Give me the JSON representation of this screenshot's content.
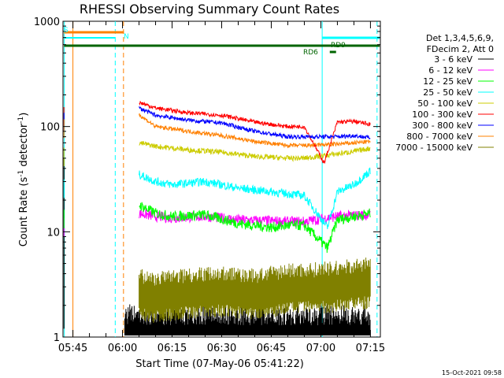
{
  "chart_data": {
    "type": "line",
    "title": "RHESSI Observing Summary Count Rates",
    "xlabel": "Start Time (07-May-06 05:41:22)",
    "ylabel_main": "Count Rate (s",
    "ylabel_sup1": "-1",
    "ylabel_mid": " detector",
    "ylabel_sup2": "-1",
    "ylabel_end": ")",
    "yscale": "log",
    "ylim": [
      1,
      1000
    ],
    "xlim_minutes": [
      342,
      438
    ],
    "y_ticks": [
      {
        "value": 1,
        "label": "1"
      },
      {
        "value": 10,
        "label": "10"
      },
      {
        "value": 100,
        "label": "100"
      },
      {
        "value": 1000,
        "label": "1000"
      }
    ],
    "x_ticks": [
      {
        "value": 345,
        "label": "05:45"
      },
      {
        "value": 360,
        "label": "06:00"
      },
      {
        "value": 375,
        "label": "06:15"
      },
      {
        "value": 390,
        "label": "06:30"
      },
      {
        "value": 405,
        "label": "06:45"
      },
      {
        "value": 420,
        "label": "07:00"
      },
      {
        "value": 435,
        "label": "07:15"
      }
    ],
    "legend_header": [
      "Det 1,3,4,5,6,9,",
      "FDecim 2, Att 0"
    ],
    "series": [
      {
        "name": "3 - 6 keV",
        "color": "#000000",
        "values": [
          [
            360.7,
            1.5
          ],
          [
            370,
            1.5
          ],
          [
            390,
            1.5
          ],
          [
            410,
            1.5
          ],
          [
            425,
            1.5
          ],
          [
            435,
            1.5
          ]
        ]
      },
      {
        "name": "6 - 12 keV",
        "color": "#ff00ff",
        "values": [
          [
            365,
            15
          ],
          [
            370,
            14
          ],
          [
            375,
            13.5
          ],
          [
            385,
            14
          ],
          [
            395,
            13
          ],
          [
            410,
            12.5
          ],
          [
            415,
            12.5
          ],
          [
            425,
            14
          ],
          [
            435,
            14.5
          ]
        ]
      },
      {
        "name": "12 - 25 keV",
        "color": "#00ff00",
        "values": [
          [
            365,
            18
          ],
          [
            370,
            15
          ],
          [
            375,
            14
          ],
          [
            385,
            14.5
          ],
          [
            395,
            12
          ],
          [
            405,
            11
          ],
          [
            410,
            11.5
          ],
          [
            415,
            11.5
          ],
          [
            422,
            7
          ],
          [
            425,
            13
          ],
          [
            435,
            15
          ]
        ]
      },
      {
        "name": "25 - 50 keV",
        "color": "#00ffff",
        "values": [
          [
            365,
            35
          ],
          [
            370,
            30
          ],
          [
            375,
            28
          ],
          [
            385,
            30
          ],
          [
            395,
            26
          ],
          [
            405,
            24
          ],
          [
            410,
            23
          ],
          [
            415,
            22
          ],
          [
            422,
            11
          ],
          [
            425,
            24
          ],
          [
            430,
            28
          ],
          [
            435,
            38
          ]
        ]
      },
      {
        "name": "50 - 100 keV",
        "color": "#cccc00",
        "values": [
          [
            365,
            70
          ],
          [
            370,
            65
          ],
          [
            380,
            60
          ],
          [
            390,
            57
          ],
          [
            400,
            52
          ],
          [
            410,
            50
          ],
          [
            415,
            50
          ],
          [
            425,
            55
          ],
          [
            430,
            58
          ],
          [
            435,
            62
          ]
        ]
      },
      {
        "name": "100 - 300 keV",
        "color": "#ff0000",
        "values": [
          [
            365,
            170
          ],
          [
            370,
            150
          ],
          [
            380,
            135
          ],
          [
            390,
            128
          ],
          [
            400,
            110
          ],
          [
            410,
            100
          ],
          [
            415,
            100
          ],
          [
            421,
            45
          ],
          [
            425,
            110
          ],
          [
            430,
            112
          ],
          [
            435,
            105
          ]
        ]
      },
      {
        "name": "300 - 800 keV",
        "color": "#0000ff",
        "values": [
          [
            365,
            150
          ],
          [
            370,
            128
          ],
          [
            380,
            115
          ],
          [
            390,
            108
          ],
          [
            400,
            90
          ],
          [
            410,
            80
          ],
          [
            415,
            80
          ],
          [
            425,
            80
          ],
          [
            430,
            82
          ],
          [
            435,
            78
          ]
        ]
      },
      {
        "name": "800 - 7000 keV",
        "color": "#ff8000",
        "values": [
          [
            365,
            130
          ],
          [
            370,
            100
          ],
          [
            380,
            90
          ],
          [
            390,
            82
          ],
          [
            400,
            72
          ],
          [
            410,
            66
          ],
          [
            415,
            66
          ],
          [
            425,
            68
          ],
          [
            430,
            70
          ],
          [
            435,
            72
          ]
        ]
      },
      {
        "name": "7000 - 15000 keV",
        "color": "#808000",
        "values": [
          [
            365,
            3.2
          ],
          [
            370,
            3.0
          ],
          [
            380,
            3.3
          ],
          [
            390,
            3.4
          ],
          [
            400,
            3.2
          ],
          [
            410,
            3.6
          ],
          [
            420,
            3.7
          ],
          [
            425,
            3.8
          ],
          [
            430,
            4.0
          ],
          [
            435,
            4.1
          ]
        ]
      }
    ],
    "annotations": {
      "rd6_label": "RD6",
      "rd9_label": "RD9",
      "s_flag": "S",
      "n_flag": "N"
    },
    "timestamp": "15-Oct-2021 09:58"
  }
}
